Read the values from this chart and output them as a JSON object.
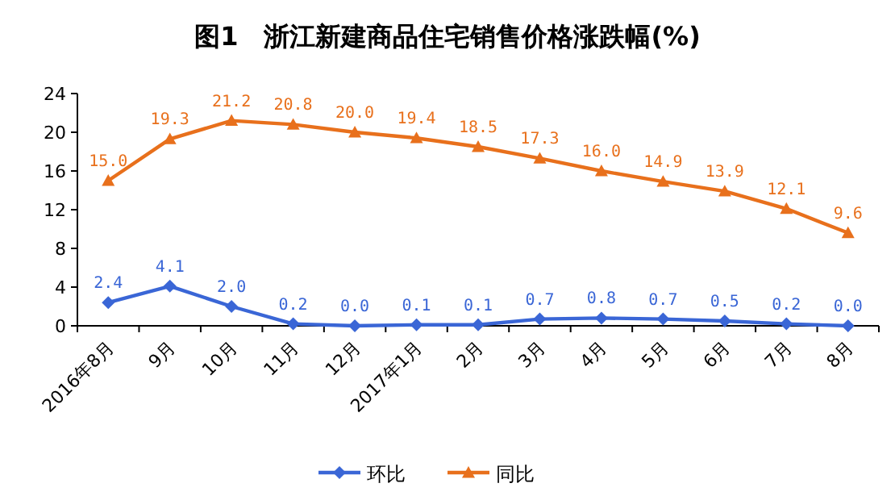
{
  "chart_data": {
    "type": "line",
    "title": "图1　浙江新建商品住宅销售价格涨跌幅(%)",
    "categories": [
      "2016年8月",
      "9月",
      "10月",
      "11月",
      "12月",
      "2017年1月",
      "2月",
      "3月",
      "4月",
      "5月",
      "6月",
      "7月",
      "8月"
    ],
    "series": [
      {
        "name": "环比",
        "color": "#3a66d6",
        "marker": "diamond",
        "values": [
          2.4,
          4.1,
          2.0,
          0.2,
          0.0,
          0.1,
          0.1,
          0.7,
          0.8,
          0.7,
          0.5,
          0.2,
          0.0
        ],
        "value_labels": [
          "2.4",
          "4.1",
          "2.0",
          "0.2",
          "0.0",
          "0.1",
          "0.1",
          "0.7",
          "0.8",
          "0.7",
          "0.5",
          "0.2",
          "0.0"
        ]
      },
      {
        "name": "同比",
        "color": "#e8701c",
        "marker": "triangle",
        "values": [
          15.0,
          19.3,
          21.2,
          20.8,
          20.0,
          19.4,
          18.5,
          17.3,
          16.0,
          14.9,
          13.9,
          12.1,
          9.6
        ],
        "value_labels": [
          "15.0",
          "19.3",
          "21.2",
          "20.8",
          "20.0",
          "19.4",
          "18.5",
          "17.3",
          "16.0",
          "14.9",
          "13.9",
          "12.1",
          "9.6"
        ]
      }
    ],
    "ylim": [
      0,
      24
    ],
    "yticks": [
      0,
      4,
      8,
      12,
      16,
      20,
      24
    ],
    "grid": false,
    "legend": "bottom"
  }
}
